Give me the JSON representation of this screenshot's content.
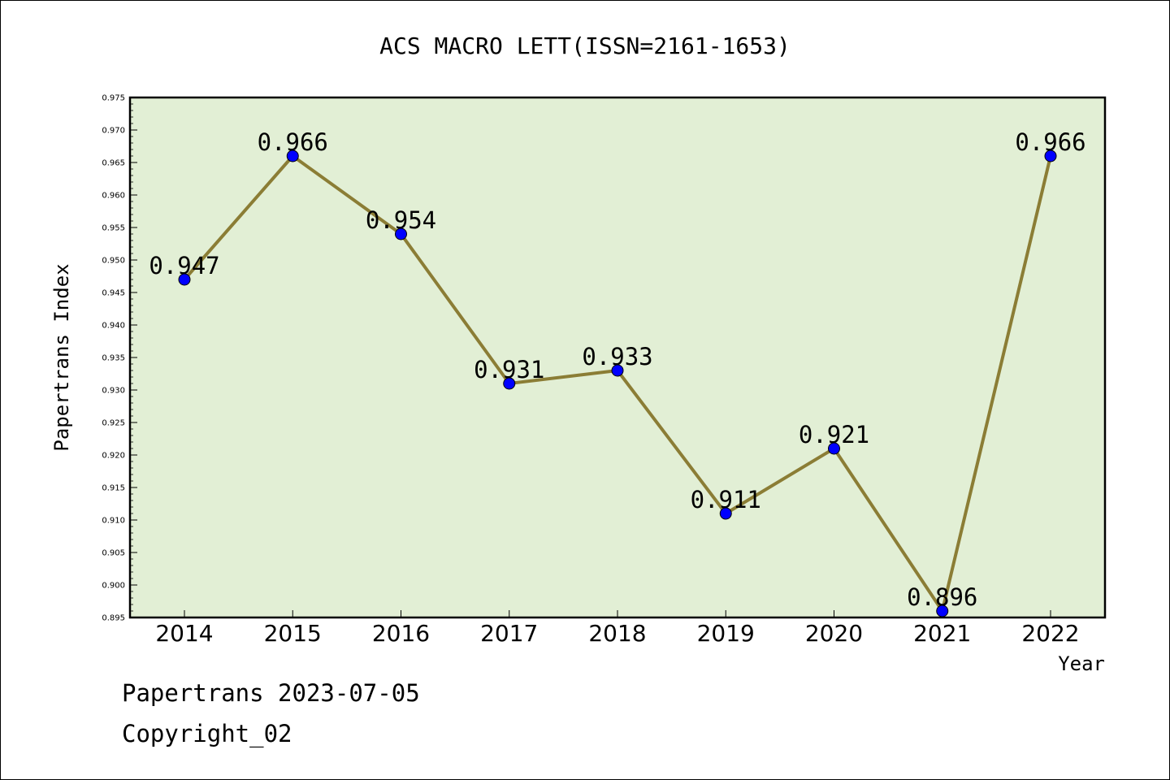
{
  "chart_data": {
    "type": "line",
    "title": "ACS MACRO LETT(ISSN=2161-1653)",
    "xlabel": "Year",
    "ylabel": "Papertrans Index",
    "categories": [
      "2014",
      "2015",
      "2016",
      "2017",
      "2018",
      "2019",
      "2020",
      "2021",
      "2022"
    ],
    "values": [
      0.947,
      0.966,
      0.954,
      0.931,
      0.933,
      0.911,
      0.921,
      0.896,
      0.966
    ],
    "data_labels": [
      "0.947",
      "0.966",
      "0.954",
      "0.931",
      "0.933",
      "0.911",
      "0.921",
      "0.896",
      "0.966"
    ],
    "ylim": [
      0.895,
      0.975
    ],
    "yticks": [
      "0.895",
      "0.900",
      "0.905",
      "0.910",
      "0.915",
      "0.920",
      "0.925",
      "0.930",
      "0.935",
      "0.940",
      "0.945",
      "0.950",
      "0.955",
      "0.960",
      "0.965",
      "0.970",
      "0.975"
    ],
    "grid": false,
    "colors": {
      "plot_background": "#e2efd5",
      "line": "#8b7d35",
      "marker": "#0000ff"
    }
  },
  "footer": {
    "line1": "Papertrans 2023-07-05",
    "line2": "Copyright_02"
  }
}
